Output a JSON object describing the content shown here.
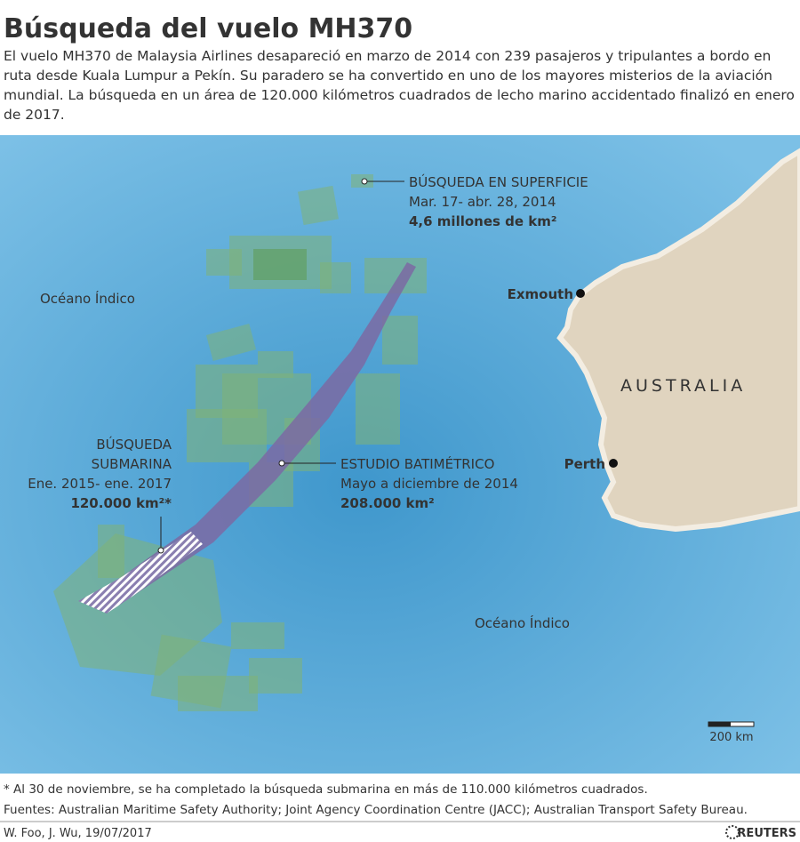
{
  "header": {
    "title": "Búsqueda del vuelo MH370",
    "intro": "El vuelo MH370 de Malaysia Airlines desapareció en marzo de 2014 con 239 pasajeros y tripulantes a bordo en ruta desde Kuala Lumpur a Pekín. Su paradero se ha convertido en uno de los mayores misterios de la aviación mundial. La búsqueda en un área de 120.000 kilómetros cuadrados de lecho marino accidentado finalizó en enero de 2017."
  },
  "map": {
    "ocean_labels": [
      "Océano Índico",
      "Océano Índico"
    ],
    "country": "AUSTRALIA",
    "cities": [
      "Exmouth",
      "Perth"
    ],
    "surface_search": {
      "title": "BÚSQUEDA EN SUPERFICIE",
      "dates": "Mar. 17- abr. 28, 2014",
      "area": "4,6 millones de km²"
    },
    "underwater_search": {
      "title_1": "BÚSQUEDA",
      "title_2": "SUBMARINA",
      "dates": "Ene. 2015- ene. 2017",
      "area": "120.000 km²*"
    },
    "bathymetric_survey": {
      "title": "ESTUDIO BATIMÉTRICO",
      "dates": "Mayo a diciembre de 2014",
      "area": "208.000 km²"
    },
    "scale": "200 km"
  },
  "footer": {
    "note": "* Al 30 de noviembre, se ha completado la búsqueda submarina en más de 110.000 kilómetros cuadrados.",
    "sources": "Fuentes: Australian Maritime Safety Authority; Joint Agency Coordination Centre (JACC); Australian Transport Safety Bureau.",
    "byline": "W. Foo, J. Wu,  19/07/2017",
    "brand": "REUTERS"
  }
}
